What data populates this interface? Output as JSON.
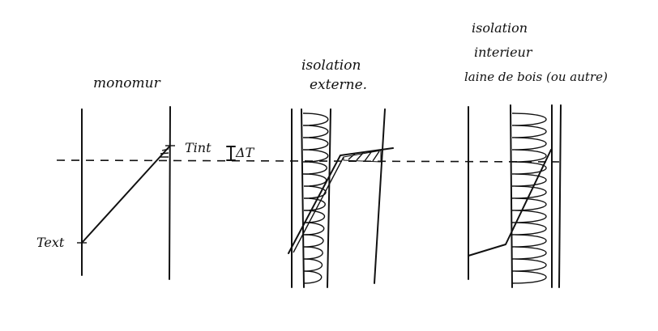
{
  "labels": {
    "monomur": "monomur",
    "t_int": "Tint",
    "delta_t": "ΔT",
    "t_ext": "Text",
    "ext_line1": "isolation",
    "ext_line2": "externe.",
    "int_line1": "isolation",
    "int_line2": "interieur",
    "int_line3": "laine de bois (ou autre)"
  },
  "colors": {
    "ink": "#111111",
    "background": "#ffffff"
  }
}
